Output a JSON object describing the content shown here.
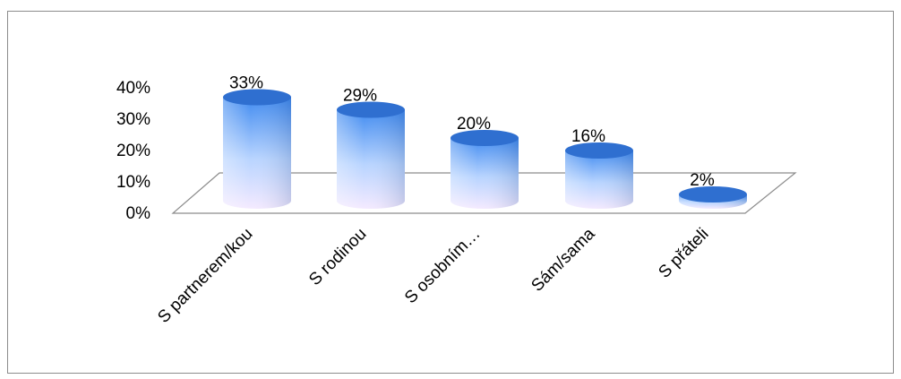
{
  "chart_data": {
    "type": "bar",
    "style": "3d-cylinder",
    "categories": [
      "S partnerem/kou",
      "S rodinou",
      "S osobním…",
      "Sám/sama",
      "S přáteli"
    ],
    "values": [
      33,
      29,
      20,
      16,
      2
    ],
    "data_labels": [
      "33%",
      "29%",
      "20%",
      "16%",
      "2%"
    ],
    "y_ticks": [
      "40%",
      "30%",
      "20%",
      "10%",
      "0%"
    ],
    "ylim": [
      0,
      40
    ],
    "grid": false,
    "legend": "none",
    "colors": {
      "cylinder_top": "#2f6fd0",
      "cylinder_body_top": "#3f8af0",
      "cylinder_body_mid": "#b8d4ff",
      "cylinder_body_bottom": "#f4eaff",
      "floor_line": "#8c8c8c"
    }
  }
}
